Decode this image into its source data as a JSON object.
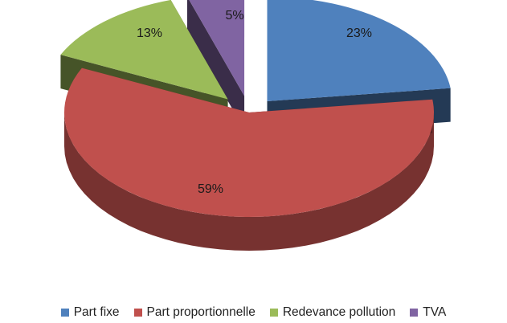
{
  "chart_data": {
    "type": "pie",
    "style": "3d-exploded",
    "title": "",
    "categories": [
      "Part fixe",
      "Part proportionnelle",
      "Redevance pollution",
      "TVA"
    ],
    "values": [
      23,
      59,
      13,
      5
    ],
    "labels": [
      "23%",
      "59%",
      "13%",
      "5%"
    ],
    "colors": [
      "#4F81BD",
      "#C0504D",
      "#9BBB59",
      "#8064A2"
    ],
    "legend_position": "bottom"
  },
  "legend": {
    "items": [
      {
        "label": "Part fixe",
        "color": "#4F81BD"
      },
      {
        "label": "Part proportionnelle",
        "color": "#C0504D"
      },
      {
        "label": "Redevance pollution",
        "color": "#9BBB59"
      },
      {
        "label": "TVA",
        "color": "#8064A2"
      }
    ]
  }
}
